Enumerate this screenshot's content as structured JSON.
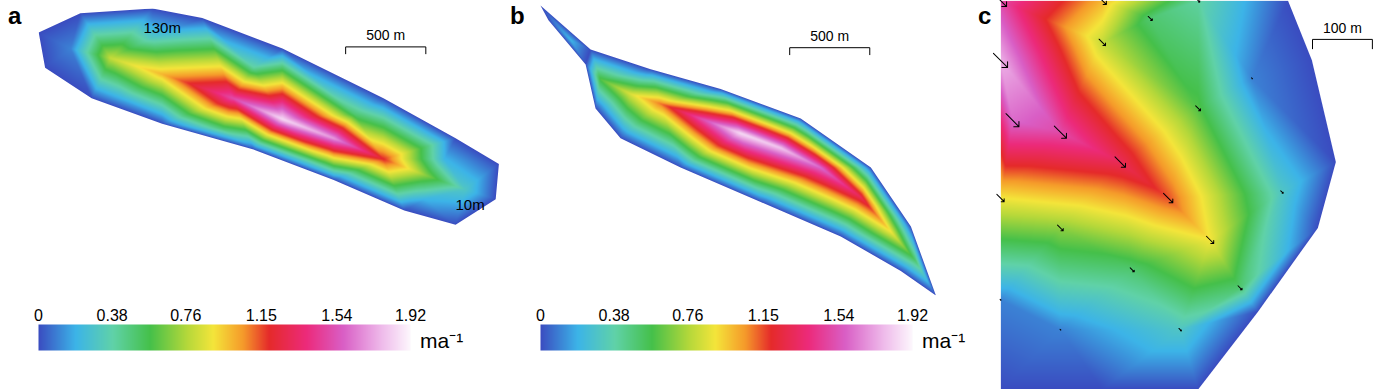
{
  "chart_data": [
    {
      "type": "heatmap",
      "panel": "a",
      "tick_labels": false,
      "xlim": [
        0,
        2900
      ],
      "ylim": [
        -220,
        1590
      ],
      "colorbar": {
        "range": [
          0,
          1.92
        ],
        "ticks": [
          0,
          0.38,
          0.76,
          1.15,
          1.54,
          1.92
        ],
        "label": "ma⁻¹"
      },
      "scale_bar": {
        "length": 500,
        "label": "500 m"
      },
      "annotations": [
        {
          "text": "130m",
          "x": 790,
          "y": 1420
        },
        {
          "text": "10m",
          "x": 2710,
          "y": 315
        }
      ],
      "outline": [
        [
          20,
          1390,
          0
        ],
        [
          280,
          1510,
          0
        ],
        [
          730,
          1540,
          0
        ],
        [
          1040,
          1480,
          0
        ],
        [
          1540,
          1290,
          0
        ],
        [
          2170,
          980,
          0
        ],
        [
          2620,
          730,
          0
        ],
        [
          2890,
          570,
          0
        ],
        [
          2870,
          350,
          0
        ],
        [
          2620,
          190,
          0
        ],
        [
          2300,
          280,
          0
        ],
        [
          1860,
          470,
          0
        ],
        [
          1360,
          660,
          0
        ],
        [
          790,
          820,
          0
        ],
        [
          350,
          980,
          0
        ],
        [
          60,
          1170,
          0
        ]
      ],
      "samples": [
        [
          470,
          1230,
          0.8
        ],
        [
          790,
          1130,
          1.0
        ],
        [
          1230,
          980,
          1.5
        ],
        [
          1540,
          850,
          1.85
        ],
        [
          1860,
          730,
          1.7
        ],
        [
          2170,
          600,
          1.2
        ],
        [
          2430,
          500,
          0.7
        ],
        [
          2680,
          410,
          0.3
        ],
        [
          220,
          1290,
          0.1
        ],
        [
          730,
          1360,
          0.3
        ],
        [
          1360,
          1170,
          0.4
        ],
        [
          1990,
          880,
          0.5
        ],
        [
          2550,
          600,
          0.2
        ],
        [
          540,
          980,
          0.2
        ],
        [
          1170,
          790,
          0.5
        ],
        [
          1800,
          570,
          0.5
        ],
        [
          2430,
          350,
          0.2
        ]
      ]
    },
    {
      "type": "heatmap",
      "panel": "b",
      "tick_labels": false,
      "xlim": [
        0,
        2560
      ],
      "ylim": [
        0,
        1875
      ],
      "colorbar": {
        "range": [
          0,
          1.92
        ],
        "ticks": [
          0,
          0.38,
          0.76,
          1.15,
          1.54,
          1.92
        ],
        "label": "ma⁻¹"
      },
      "scale_bar": {
        "length": 500,
        "label": "500 m"
      },
      "outline": [
        [
          31,
          1844,
          0
        ],
        [
          344,
          1563,
          0
        ],
        [
          719,
          1438,
          0
        ],
        [
          1156,
          1313,
          0
        ],
        [
          1656,
          1125,
          0
        ],
        [
          2094,
          813,
          0
        ],
        [
          2344,
          438,
          0
        ],
        [
          2500,
          0,
          0
        ],
        [
          2281,
          156,
          0
        ],
        [
          1906,
          375,
          0
        ],
        [
          1406,
          594,
          0
        ],
        [
          906,
          813,
          0
        ],
        [
          531,
          1000,
          0
        ],
        [
          375,
          1188,
          0
        ],
        [
          313,
          1469,
          0
        ],
        [
          81,
          1750,
          0
        ]
      ],
      "samples": [
        [
          406,
          1375,
          0.6
        ],
        [
          594,
          1281,
          0.85
        ],
        [
          781,
          1219,
          1.1
        ],
        [
          1031,
          1125,
          1.5
        ],
        [
          1281,
          1031,
          1.85
        ],
        [
          1531,
          938,
          1.8
        ],
        [
          1781,
          813,
          1.6
        ],
        [
          2031,
          625,
          1.3
        ],
        [
          2219,
          406,
          0.9
        ],
        [
          2375,
          219,
          0.5
        ],
        [
          219,
          1625,
          0.2
        ]
      ]
    },
    {
      "type": "heatmap",
      "panel": "c",
      "tick_labels": false,
      "xlim": [
        0,
        668
      ],
      "ylim": [
        0,
        650
      ],
      "scale_bar": {
        "length": 100,
        "label": "100 m"
      },
      "flow_direction_deg": 135,
      "outline": [
        [
          0,
          650,
          1.5
        ],
        [
          170,
          650,
          1.0
        ],
        [
          330,
          650,
          0.4
        ],
        [
          480,
          650,
          0
        ],
        [
          520,
          550,
          0
        ],
        [
          560,
          380,
          0
        ],
        [
          530,
          270,
          0
        ],
        [
          430,
          130,
          0
        ],
        [
          330,
          0,
          0
        ],
        [
          170,
          0,
          0
        ],
        [
          0,
          0,
          0
        ]
      ],
      "samples": [
        [
          0,
          550,
          1.75
        ],
        [
          20,
          450,
          1.6
        ],
        [
          100,
          430,
          1.5
        ],
        [
          200,
          380,
          1.3
        ],
        [
          280,
          320,
          1.15
        ],
        [
          350,
          250,
          0.9
        ],
        [
          400,
          170,
          0.5
        ],
        [
          0,
          320,
          0.9
        ],
        [
          100,
          270,
          0.7
        ],
        [
          220,
          200,
          0.5
        ],
        [
          170,
          580,
          0.8
        ],
        [
          330,
          470,
          0.6
        ],
        [
          470,
          330,
          0.3
        ],
        [
          0,
          150,
          0.1
        ],
        [
          250,
          620,
          0.5
        ],
        [
          420,
          520,
          0.1
        ],
        [
          100,
          100,
          0.1
        ],
        [
          300,
          100,
          0.3
        ]
      ]
    }
  ]
}
